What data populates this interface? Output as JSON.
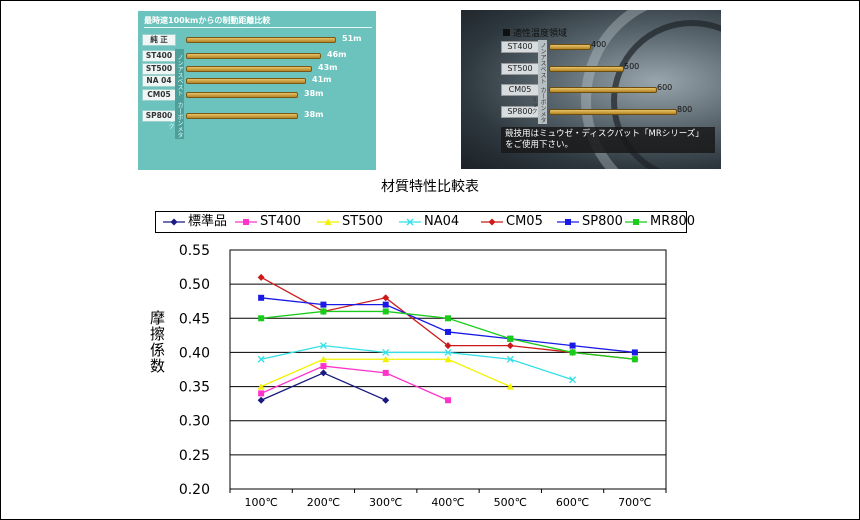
{
  "stopping_panel": {
    "title": "最時速100kmからの制動距離比較",
    "rows": [
      {
        "label": "純 正",
        "value": "51m",
        "ratio": 1.0
      },
      {
        "label": "ST400",
        "value": "46m",
        "ratio": 0.9
      },
      {
        "label": "ST500",
        "value": "43m",
        "ratio": 0.84
      },
      {
        "label": "NA 04",
        "value": "41m",
        "ratio": 0.8
      },
      {
        "label": "CM05",
        "value": "38m",
        "ratio": 0.745
      },
      {
        "label": "SP800",
        "value": "38m",
        "ratio": 0.745
      }
    ],
    "group_labels": [
      "ノンアスベスト",
      "カーボンメタリック"
    ]
  },
  "temperature_panel": {
    "title": "適性温度領域",
    "rows": [
      {
        "label": "ST400",
        "value": "400",
        "ratio": 0.32
      },
      {
        "label": "ST500",
        "value": "500",
        "ratio": 0.58
      },
      {
        "label": "CM05",
        "value": "600",
        "ratio": 0.84
      },
      {
        "label": "SP800",
        "value": "800",
        "ratio": 1.0
      }
    ],
    "group_labels": [
      "ノンアスベスト",
      "カーボンメタリック"
    ],
    "note_line1": "競技用はミュウゼ・ディスクパット「MRシリーズ」",
    "note_line2": "をご使用下さい。"
  },
  "chart_data": {
    "type": "line",
    "title": "材質特性比較表",
    "ylabel": "摩擦係数",
    "xlabel": "",
    "categories": [
      "100℃",
      "200℃",
      "300℃",
      "400℃",
      "500℃",
      "600℃",
      "700℃"
    ],
    "ylim": [
      0.2,
      0.55
    ],
    "yticks": [
      "0.55",
      "0.50",
      "0.45",
      "0.40",
      "0.35",
      "0.30",
      "0.25",
      "0.20"
    ],
    "grid": true,
    "legend_position": "top",
    "series": [
      {
        "name": "標準品",
        "color": "#1a1a80",
        "marker": "diamond",
        "values": [
          0.33,
          0.37,
          0.33,
          null,
          null,
          null,
          null
        ]
      },
      {
        "name": "ST400",
        "color": "#ff33cc",
        "marker": "square",
        "values": [
          0.34,
          0.38,
          0.37,
          0.33,
          null,
          null,
          null
        ]
      },
      {
        "name": "ST500",
        "color": "#f2f200",
        "marker": "triangle",
        "values": [
          0.35,
          0.39,
          0.39,
          0.39,
          0.35,
          null,
          null
        ]
      },
      {
        "name": "NA04",
        "color": "#33e0e6",
        "marker": "x",
        "values": [
          0.39,
          0.41,
          0.4,
          0.4,
          0.39,
          0.36,
          null
        ]
      },
      {
        "name": "CM05",
        "color": "#cc1a1a",
        "marker": "diamond",
        "values": [
          0.51,
          0.46,
          0.48,
          0.41,
          0.41,
          0.4,
          0.39
        ]
      },
      {
        "name": "SP800",
        "color": "#1a1ae6",
        "marker": "square",
        "values": [
          0.48,
          0.47,
          0.47,
          0.43,
          0.42,
          0.41,
          0.4
        ]
      },
      {
        "name": "MR800",
        "color": "#1acc1a",
        "marker": "square",
        "values": [
          0.45,
          0.46,
          0.46,
          0.45,
          0.42,
          0.4,
          0.39
        ]
      }
    ]
  }
}
